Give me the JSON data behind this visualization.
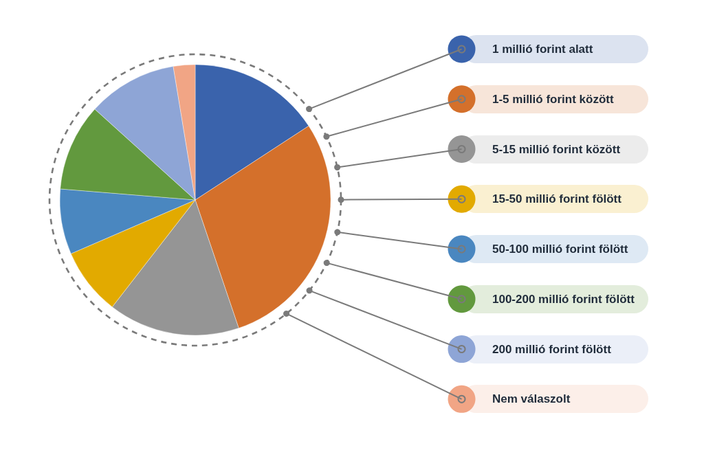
{
  "chart_data": {
    "type": "pie",
    "categories": [
      "1 millió forint alatt",
      "1-5 millió forint között",
      "5-15 millió forint között",
      "15-50 millió forint fölött",
      "50-100 millió forint fölött",
      "100-200 millió forint fölött",
      "200 millió forint fölött",
      "Nem válaszolt"
    ],
    "values": [
      15.8,
      29,
      15.7,
      8,
      7.8,
      10.4,
      10.7,
      2.6
    ],
    "colors": [
      "#3a63ac",
      "#d4702b",
      "#959595",
      "#e2aa00",
      "#4a87c0",
      "#62993e",
      "#8ea5d6",
      "#f1a585"
    ],
    "legend": "right"
  }
}
